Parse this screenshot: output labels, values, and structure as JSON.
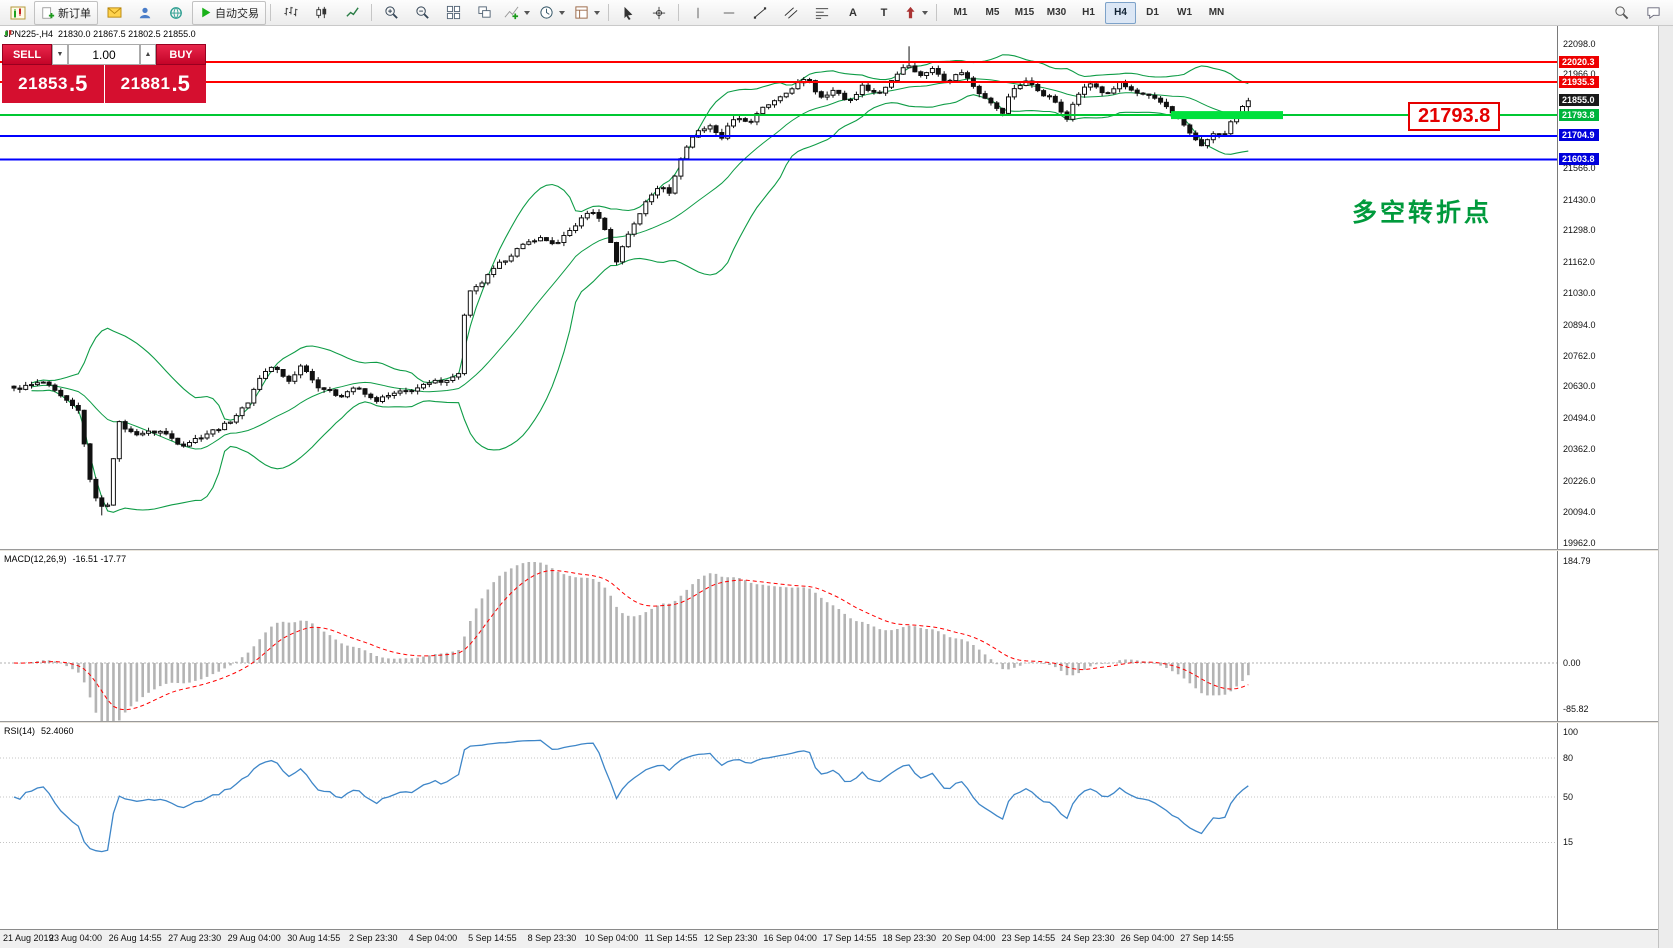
{
  "toolbar": {
    "new_order_label": "新订单",
    "autotrading_label": "自动交易",
    "timeframes": [
      "M1",
      "M5",
      "M15",
      "M30",
      "H1",
      "H4",
      "D1",
      "W1",
      "MN"
    ],
    "active_timeframe": "H4",
    "glyphs": {
      "text_tool": "A",
      "label_tool": "T"
    }
  },
  "chart": {
    "symbol_header": {
      "symbol": "JPN225-,H4",
      "ohlc": "21830.0 21867.5 21802.5 21855.0"
    },
    "one_click": {
      "sell_label": "SELL",
      "buy_label": "BUY",
      "volume": "1.00",
      "down_glyph": "▼",
      "up_glyph": "▲",
      "sell_int": "21853",
      "sell_frac": ".5",
      "buy_int": "21881",
      "buy_frac": ".5"
    },
    "price_label_box": "21793.8",
    "annotation": "多空转折点",
    "price_badges": [
      {
        "text": "22020.3",
        "value": 22020.3,
        "bg": "#ee0000",
        "fg": "#ffffff"
      },
      {
        "text": "21935.3",
        "value": 21935.3,
        "bg": "#ee0000",
        "fg": "#ffffff"
      },
      {
        "text": "21855.0",
        "value": 21855.0,
        "bg": "#1a1a1a",
        "fg": "#ffffff"
      },
      {
        "text": "21793.8",
        "value": 21793.8,
        "bg": "#00b43c",
        "fg": "#ffffff"
      },
      {
        "text": "21704.9",
        "value": 21704.9,
        "bg": "#0000dc",
        "fg": "#ffffff"
      },
      {
        "text": "21603.8",
        "value": 21603.8,
        "bg": "#0000dc",
        "fg": "#ffffff"
      }
    ]
  },
  "chart_data": {
    "type": "candlestick",
    "symbol": "JPN225-",
    "timeframe": "H4",
    "current_ohlc": {
      "open": 21830.0,
      "high": 21867.5,
      "low": 21802.5,
      "close": 21855.0
    },
    "candle_count": 212,
    "y_axis": {
      "min": 19962.0,
      "max": 22098.0,
      "tick_labels": [
        "22098.0",
        "21966.0",
        "21566.0",
        "21430.0",
        "21298.0",
        "21162.0",
        "21030.0",
        "20894.0",
        "20762.0",
        "20630.0",
        "20494.0",
        "20362.0",
        "20226.0",
        "20094.0",
        "19962.0"
      ]
    },
    "x_axis": {
      "tick_labels": [
        "21 Aug 2019",
        "23 Aug 04:00",
        "26 Aug 14:55",
        "27 Aug 23:30",
        "29 Aug 04:00",
        "30 Aug 14:55",
        "2 Sep 23:30",
        "4 Sep 04:00",
        "5 Sep 14:55",
        "8 Sep 23:30",
        "10 Sep 04:00",
        "11 Sep 14:55",
        "12 Sep 23:30",
        "16 Sep 04:00",
        "17 Sep 14:55",
        "18 Sep 23:30",
        "20 Sep 04:00",
        "23 Sep 14:55",
        "24 Sep 23:30",
        "26 Sep 04:00",
        "27 Sep 14:55"
      ]
    },
    "price_path": [
      [
        0,
        20620
      ],
      [
        0.024,
        20650
      ],
      [
        0.044,
        20560
      ],
      [
        0.054,
        20520
      ],
      [
        0.06,
        20250
      ],
      [
        0.07,
        20110
      ],
      [
        0.076,
        20130
      ],
      [
        0.084,
        20480
      ],
      [
        0.096,
        20430
      ],
      [
        0.12,
        20440
      ],
      [
        0.136,
        20380
      ],
      [
        0.156,
        20430
      ],
      [
        0.172,
        20470
      ],
      [
        0.188,
        20550
      ],
      [
        0.2,
        20680
      ],
      [
        0.21,
        20720
      ],
      [
        0.222,
        20650
      ],
      [
        0.234,
        20730
      ],
      [
        0.244,
        20640
      ],
      [
        0.264,
        20590
      ],
      [
        0.276,
        20630
      ],
      [
        0.292,
        20570
      ],
      [
        0.308,
        20600
      ],
      [
        0.324,
        20620
      ],
      [
        0.34,
        20650
      ],
      [
        0.356,
        20670
      ],
      [
        0.362,
        20700
      ],
      [
        0.366,
        21020
      ],
      [
        0.376,
        21060
      ],
      [
        0.392,
        21150
      ],
      [
        0.408,
        21220
      ],
      [
        0.424,
        21270
      ],
      [
        0.44,
        21240
      ],
      [
        0.456,
        21330
      ],
      [
        0.468,
        21390
      ],
      [
        0.48,
        21300
      ],
      [
        0.488,
        21170
      ],
      [
        0.498,
        21290
      ],
      [
        0.512,
        21420
      ],
      [
        0.524,
        21500
      ],
      [
        0.532,
        21460
      ],
      [
        0.54,
        21610
      ],
      [
        0.552,
        21720
      ],
      [
        0.564,
        21750
      ],
      [
        0.572,
        21690
      ],
      [
        0.584,
        21790
      ],
      [
        0.596,
        21760
      ],
      [
        0.608,
        21830
      ],
      [
        0.62,
        21860
      ],
      [
        0.632,
        21920
      ],
      [
        0.644,
        21950
      ],
      [
        0.652,
        21870
      ],
      [
        0.664,
        21900
      ],
      [
        0.676,
        21850
      ],
      [
        0.688,
        21920
      ],
      [
        0.7,
        21880
      ],
      [
        0.712,
        21950
      ],
      [
        0.724,
        22020
      ],
      [
        0.732,
        21960
      ],
      [
        0.744,
        21990
      ],
      [
        0.756,
        21940
      ],
      [
        0.768,
        21980
      ],
      [
        0.78,
        21900
      ],
      [
        0.792,
        21850
      ],
      [
        0.8,
        21790
      ],
      [
        0.808,
        21900
      ],
      [
        0.82,
        21940
      ],
      [
        0.832,
        21890
      ],
      [
        0.844,
        21850
      ],
      [
        0.852,
        21760
      ],
      [
        0.86,
        21880
      ],
      [
        0.872,
        21930
      ],
      [
        0.884,
        21880
      ],
      [
        0.896,
        21930
      ],
      [
        0.908,
        21890
      ],
      [
        0.92,
        21870
      ],
      [
        0.932,
        21840
      ],
      [
        0.944,
        21780
      ],
      [
        0.956,
        21690
      ],
      [
        0.964,
        21660
      ],
      [
        0.972,
        21720
      ],
      [
        0.98,
        21700
      ],
      [
        0.988,
        21780
      ],
      [
        1,
        21855
      ]
    ],
    "spike_high": {
      "f": 0.724,
      "price": 22088
    },
    "spike_low": {
      "f": 0.07,
      "price": 20080
    },
    "overlays": {
      "bollinger": {
        "period": 20,
        "deviation": 2,
        "color": "#0e9c46"
      }
    },
    "horizontal_lines": [
      {
        "value": 22020.3,
        "color": "#ff0000",
        "width": 2
      },
      {
        "value": 21935.3,
        "color": "#ff0000",
        "width": 2
      },
      {
        "value": 21793.8,
        "color": "#00c832",
        "width": 2
      },
      {
        "value": 21704.9,
        "color": "#0000ff",
        "width": 2
      },
      {
        "value": 21603.8,
        "color": "#0000ff",
        "width": 2
      }
    ],
    "highlight_zone": {
      "price": 21793.8,
      "x_start_frac": 0.752,
      "x_end_frac": 0.824,
      "color": "#00e13c"
    },
    "indicators": [
      {
        "name": "MACD",
        "title": "MACD(12,26,9)",
        "values_text": "-16.51 -17.77",
        "axis_labels": [
          "184.79",
          "0.00",
          "-85.82"
        ],
        "histogram_color": "#b4b4b4",
        "signal_color": "#ff0000"
      },
      {
        "name": "RSI",
        "title": "RSI(14)",
        "value_text": "52.4060",
        "axis_labels": [
          "100",
          "80",
          "50",
          "15"
        ],
        "line_color": "#3e86c8"
      }
    ]
  }
}
